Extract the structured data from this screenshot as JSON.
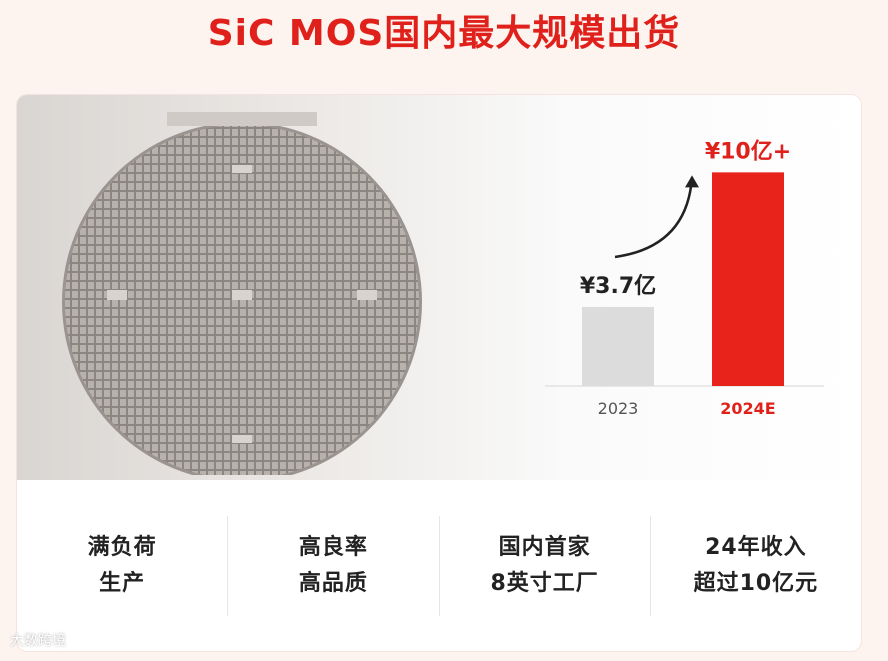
{
  "title": "SiC MOS国内最大规模出货",
  "chart_data": {
    "type": "bar",
    "categories": [
      "2023",
      "2024E"
    ],
    "values": [
      3.7,
      10
    ],
    "data_labels": [
      "¥3.7亿",
      "¥10亿+"
    ],
    "bar_colors": [
      "#dcdcdc",
      "#e8231c"
    ],
    "label_colors": [
      "#555555",
      "#e0211b"
    ],
    "ylim": [
      0,
      11
    ],
    "grid": false,
    "growth_arrow": true
  },
  "features": [
    {
      "line1": "满负荷",
      "line2": "生产"
    },
    {
      "line1": "高良率",
      "line2": "高品质"
    },
    {
      "line1": "国内首家",
      "line2": "8英寸工厂"
    },
    {
      "line1": "24年收入",
      "line2": "超过10亿元"
    }
  ],
  "watermark": "大数跨境",
  "colors": {
    "accent": "#e0211b",
    "background": "#fdf3ef"
  }
}
